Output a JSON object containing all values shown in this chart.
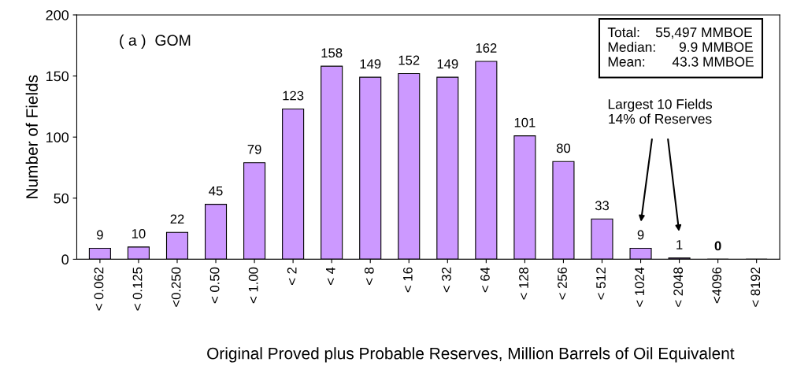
{
  "chart_data": {
    "type": "bar",
    "xlabel": "Original Proved plus Probable Reserves, Million Barrels of Oil Equivalent",
    "ylabel": "Number of Fields",
    "categories": [
      "< 0.062",
      "< 0.125",
      "<0.250",
      "< 0.50",
      "< 1.00",
      "< 2",
      "< 4",
      "< 8",
      "< 16",
      "< 32",
      "< 64",
      "< 128",
      "< 256",
      "< 512",
      "< 1024",
      "< 2048",
      "<4096",
      "< 8192"
    ],
    "values": [
      9,
      10,
      22,
      45,
      79,
      123,
      158,
      149,
      152,
      149,
      162,
      101,
      80,
      33,
      9,
      1,
      0,
      0
    ],
    "value_labels": [
      "9",
      "10",
      "22",
      "45",
      "79",
      "123",
      "158",
      "149",
      "152",
      "149",
      "162",
      "101",
      "80",
      "33",
      "9",
      "1",
      "0",
      null
    ],
    "color": "#cc99ff",
    "ylim": [
      0,
      200
    ],
    "yticks": [
      0,
      50,
      100,
      150,
      200
    ],
    "grid": false,
    "annotations": [
      "( a )  GOM",
      "Total:    55,497 MMBOE\nMedian:      9.9 MMBOE\nMean:       43.3 MMBOE",
      "Largest 10 Fields\n14% of Reserves"
    ]
  }
}
